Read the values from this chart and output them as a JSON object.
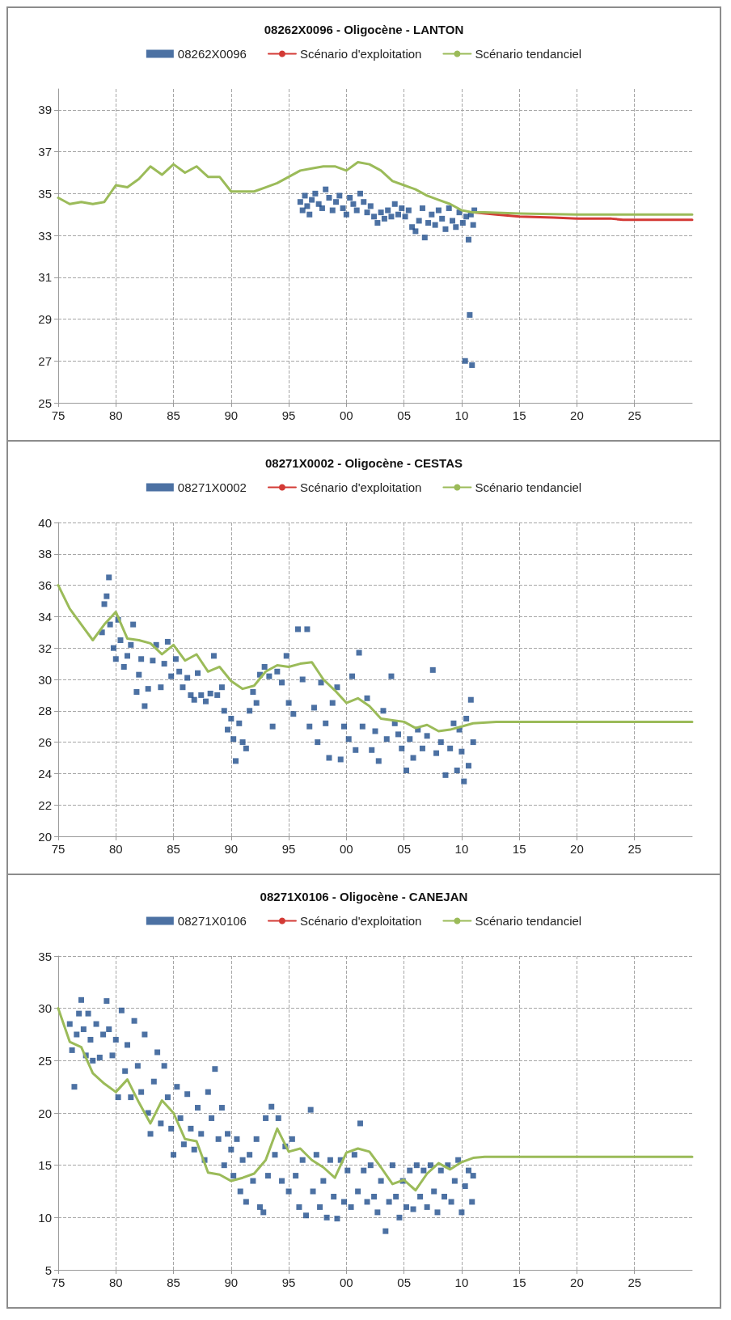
{
  "chart_data": [
    {
      "type": "scatter",
      "title": "08262X0096 - Oligocène - LANTON",
      "legend": "top",
      "grid": true,
      "xlim": [
        1975,
        2030
      ],
      "xticks": [
        {
          "value": 1975,
          "label": "75"
        },
        {
          "value": 1980,
          "label": "80"
        },
        {
          "value": 1985,
          "label": "85"
        },
        {
          "value": 1990,
          "label": "90"
        },
        {
          "value": 1995,
          "label": "95"
        },
        {
          "value": 2000,
          "label": "00"
        },
        {
          "value": 2005,
          "label": "05"
        },
        {
          "value": 2010,
          "label": "10"
        },
        {
          "value": 2015,
          "label": "15"
        },
        {
          "value": 2020,
          "label": "20"
        },
        {
          "value": 2025,
          "label": "25"
        }
      ],
      "ylim": [
        25,
        40
      ],
      "yticks": [
        25,
        27,
        29,
        31,
        33,
        35,
        37,
        39
      ],
      "series": [
        {
          "name": "08262X0096",
          "marker": "square",
          "color": "#1f4e8c",
          "x": [
            1996.0,
            1996.2,
            1996.4,
            1996.6,
            1996.8,
            1997.0,
            1997.3,
            1997.6,
            1997.9,
            1998.2,
            1998.5,
            1998.8,
            1999.1,
            1999.4,
            1999.7,
            2000.0,
            2000.3,
            2000.6,
            2000.9,
            2001.2,
            2001.5,
            2001.8,
            2002.1,
            2002.4,
            2002.7,
            2003.0,
            2003.3,
            2003.6,
            2003.9,
            2004.2,
            2004.5,
            2004.8,
            2005.1,
            2005.4,
            2005.7,
            2006.0,
            2006.3,
            2006.6,
            2006.8,
            2007.1,
            2007.4,
            2007.7,
            2008.0,
            2008.3,
            2008.6,
            2008.9,
            2009.2,
            2009.5,
            2009.8,
            2010.1,
            2010.3,
            2010.4,
            2010.6,
            2010.7,
            2010.8,
            2010.9,
            2011.0,
            2011.1
          ],
          "values": [
            34.6,
            34.2,
            34.9,
            34.4,
            34.0,
            34.7,
            35.0,
            34.5,
            34.3,
            35.2,
            34.8,
            34.2,
            34.6,
            34.9,
            34.3,
            34.0,
            34.8,
            34.5,
            34.2,
            35.0,
            34.6,
            34.1,
            34.4,
            33.9,
            33.6,
            34.1,
            33.8,
            34.2,
            33.9,
            34.5,
            34.0,
            34.3,
            33.9,
            34.2,
            33.4,
            33.2,
            33.7,
            34.3,
            32.9,
            33.6,
            34.0,
            33.5,
            34.2,
            33.8,
            33.3,
            34.3,
            33.7,
            33.4,
            34.1,
            33.6,
            27.0,
            33.9,
            32.8,
            29.2,
            34.0,
            26.8,
            33.5,
            34.2
          ]
        },
        {
          "name": "Scénario d'exploitation",
          "type": "line",
          "color": "#d33a35",
          "x": [
            2011,
            2013,
            2015,
            2018,
            2020,
            2023,
            2024,
            2030
          ],
          "values": [
            34.1,
            34.0,
            33.9,
            33.85,
            33.8,
            33.8,
            33.75,
            33.75
          ]
        },
        {
          "name": "Scénario tendanciel",
          "type": "line",
          "color": "#9bbb59",
          "x": [
            1975,
            1976,
            1977,
            1978,
            1979,
            1980,
            1981,
            1982,
            1983,
            1984,
            1985,
            1986,
            1987,
            1988,
            1989,
            1990,
            1991,
            1992,
            1993,
            1994,
            1995,
            1996,
            1997,
            1998,
            1999,
            2000,
            2001,
            2002,
            2003,
            2004,
            2005,
            2006,
            2007,
            2008,
            2009,
            2010,
            2011,
            2012,
            2015,
            2020,
            2025,
            2030
          ],
          "values": [
            34.8,
            34.5,
            34.6,
            34.5,
            34.6,
            35.4,
            35.3,
            35.7,
            36.3,
            35.9,
            36.4,
            36.0,
            36.3,
            35.8,
            35.8,
            35.1,
            35.1,
            35.1,
            35.3,
            35.5,
            35.8,
            36.1,
            36.2,
            36.3,
            36.3,
            36.1,
            36.5,
            36.4,
            36.1,
            35.6,
            35.4,
            35.2,
            34.9,
            34.7,
            34.5,
            34.2,
            34.1,
            34.1,
            34.05,
            34.0,
            34.0,
            34.0
          ]
        }
      ]
    },
    {
      "type": "scatter",
      "title": "08271X0002 - Oligocène - CESTAS",
      "legend": "top",
      "grid": true,
      "xlim": [
        1975,
        2030
      ],
      "xticks": [
        {
          "value": 1975,
          "label": "75"
        },
        {
          "value": 1980,
          "label": "80"
        },
        {
          "value": 1985,
          "label": "85"
        },
        {
          "value": 1990,
          "label": "90"
        },
        {
          "value": 1995,
          "label": "95"
        },
        {
          "value": 2000,
          "label": "00"
        },
        {
          "value": 2005,
          "label": "05"
        },
        {
          "value": 2010,
          "label": "10"
        },
        {
          "value": 2015,
          "label": "15"
        },
        {
          "value": 2020,
          "label": "20"
        },
        {
          "value": 2025,
          "label": "25"
        }
      ],
      "ylim": [
        20,
        40
      ],
      "yticks": [
        20,
        22,
        24,
        26,
        28,
        30,
        32,
        34,
        36,
        38,
        40
      ],
      "series": [
        {
          "name": "08271X0002",
          "marker": "square",
          "color": "#1f4e8c",
          "x": [
            1978.8,
            1979.0,
            1979.2,
            1979.4,
            1979.5,
            1979.8,
            1980.0,
            1980.2,
            1980.4,
            1980.7,
            1981.0,
            1981.3,
            1981.5,
            1981.8,
            1982.0,
            1982.2,
            1982.5,
            1982.8,
            1983.2,
            1983.5,
            1983.9,
            1984.2,
            1984.5,
            1984.8,
            1985.2,
            1985.5,
            1985.8,
            1986.2,
            1986.5,
            1986.8,
            1987.1,
            1987.4,
            1987.8,
            1988.2,
            1988.5,
            1988.8,
            1989.2,
            1989.4,
            1989.7,
            1990.0,
            1990.2,
            1990.4,
            1990.7,
            1991.0,
            1991.3,
            1991.6,
            1991.9,
            1992.2,
            1992.5,
            1992.9,
            1993.3,
            1993.6,
            1994.0,
            1994.4,
            1994.8,
            1995.0,
            1995.4,
            1995.8,
            1996.2,
            1996.6,
            1996.8,
            1997.2,
            1997.5,
            1997.8,
            1998.2,
            1998.5,
            1998.8,
            1999.2,
            1999.5,
            1999.8,
            2000.2,
            2000.5,
            2000.8,
            2001.1,
            2001.4,
            2001.8,
            2002.2,
            2002.5,
            2002.8,
            2003.2,
            2003.5,
            2003.9,
            2004.2,
            2004.5,
            2004.8,
            2005.2,
            2005.5,
            2005.8,
            2006.2,
            2006.6,
            2007.0,
            2007.5,
            2007.8,
            2008.2,
            2008.6,
            2009.0,
            2009.3,
            2009.6,
            2009.8,
            2010.0,
            2010.2,
            2010.4,
            2010.6,
            2010.8,
            2011.0
          ],
          "values": [
            33.0,
            34.8,
            35.3,
            36.5,
            33.5,
            32.0,
            31.3,
            33.8,
            32.5,
            30.8,
            31.5,
            32.2,
            33.5,
            29.2,
            30.3,
            31.3,
            28.3,
            29.4,
            31.2,
            32.2,
            29.5,
            31.0,
            32.4,
            30.2,
            31.3,
            30.5,
            29.5,
            30.1,
            29.0,
            28.7,
            30.4,
            29.0,
            28.6,
            29.1,
            31.5,
            29.0,
            29.5,
            28.0,
            26.8,
            27.5,
            26.2,
            24.8,
            27.2,
            26.0,
            25.6,
            28.0,
            29.2,
            28.5,
            30.3,
            30.8,
            30.2,
            27.0,
            30.5,
            29.8,
            31.5,
            28.5,
            27.8,
            33.2,
            30.0,
            33.2,
            27.0,
            28.2,
            26.0,
            29.8,
            27.2,
            25.0,
            28.5,
            29.5,
            24.9,
            27.0,
            26.2,
            30.2,
            25.5,
            31.7,
            27.0,
            28.8,
            25.5,
            26.7,
            24.8,
            28.0,
            26.2,
            30.2,
            27.2,
            26.5,
            25.6,
            24.2,
            26.2,
            25.0,
            26.8,
            25.6,
            26.4,
            30.6,
            25.3,
            26.0,
            23.9,
            25.6,
            27.2,
            24.2,
            26.8,
            25.4,
            23.5,
            27.5,
            24.5,
            28.7,
            26.0
          ]
        },
        {
          "name": "Scénario d'exploitation",
          "type": "line",
          "color": "#d33a35"
        },
        {
          "name": "Scénario tendanciel",
          "type": "line",
          "color": "#9bbb59",
          "x": [
            1975,
            1976,
            1977,
            1978,
            1979,
            1980,
            1981,
            1982,
            1983,
            1984,
            1985,
            1986,
            1987,
            1988,
            1989,
            1990,
            1991,
            1992,
            1993,
            1994,
            1995,
            1996,
            1997,
            1998,
            1999,
            2000,
            2001,
            2002,
            2003,
            2004,
            2005,
            2006,
            2007,
            2008,
            2009,
            2010,
            2011,
            2013,
            2020,
            2030
          ],
          "values": [
            36.0,
            34.5,
            33.5,
            32.5,
            33.5,
            34.3,
            32.6,
            32.5,
            32.3,
            31.6,
            32.2,
            31.2,
            31.6,
            30.5,
            30.8,
            29.9,
            29.4,
            29.6,
            30.5,
            30.9,
            30.8,
            31.0,
            31.1,
            30.0,
            29.3,
            28.5,
            28.8,
            28.3,
            27.5,
            27.4,
            27.3,
            26.9,
            27.1,
            26.7,
            26.8,
            27.0,
            27.2,
            27.3,
            27.3,
            27.3
          ]
        }
      ]
    },
    {
      "type": "scatter",
      "title": "08271X0106 - Oligocène - CANEJAN",
      "legend": "top",
      "grid": true,
      "xlim": [
        1975,
        2030
      ],
      "xticks": [
        {
          "value": 1975,
          "label": "75"
        },
        {
          "value": 1980,
          "label": "80"
        },
        {
          "value": 1985,
          "label": "85"
        },
        {
          "value": 1990,
          "label": "90"
        },
        {
          "value": 1995,
          "label": "95"
        },
        {
          "value": 2000,
          "label": "00"
        },
        {
          "value": 2005,
          "label": "05"
        },
        {
          "value": 2010,
          "label": "10"
        },
        {
          "value": 2015,
          "label": "15"
        },
        {
          "value": 2020,
          "label": "20"
        },
        {
          "value": 2025,
          "label": "25"
        }
      ],
      "ylim": [
        5,
        35
      ],
      "yticks": [
        5,
        10,
        15,
        20,
        25,
        30,
        35
      ],
      "series": [
        {
          "name": "08271X0106",
          "marker": "square",
          "color": "#1f4e8c",
          "x": [
            1976.0,
            1976.2,
            1976.4,
            1976.6,
            1976.8,
            1977.0,
            1977.2,
            1977.4,
            1977.6,
            1977.8,
            1978.0,
            1978.3,
            1978.6,
            1978.9,
            1979.2,
            1979.4,
            1979.7,
            1980.0,
            1980.2,
            1980.5,
            1980.8,
            1981.0,
            1981.3,
            1981.6,
            1981.9,
            1982.2,
            1982.5,
            1982.8,
            1983.0,
            1983.3,
            1983.6,
            1983.9,
            1984.2,
            1984.5,
            1984.8,
            1985.0,
            1985.3,
            1985.6,
            1985.9,
            1986.2,
            1986.5,
            1986.8,
            1987.1,
            1987.4,
            1987.7,
            1988.0,
            1988.3,
            1988.6,
            1988.9,
            1989.2,
            1989.4,
            1989.7,
            1990.0,
            1990.2,
            1990.5,
            1990.8,
            1991.0,
            1991.3,
            1991.6,
            1991.9,
            1992.2,
            1992.5,
            1992.8,
            1993.0,
            1993.2,
            1993.5,
            1993.8,
            1994.1,
            1994.4,
            1994.7,
            1995.0,
            1995.3,
            1995.6,
            1995.9,
            1996.2,
            1996.5,
            1996.9,
            1997.1,
            1997.4,
            1997.7,
            1998.0,
            1998.3,
            1998.6,
            1998.9,
            1999.2,
            1999.5,
            1999.8,
            2000.1,
            2000.4,
            2000.7,
            2001.0,
            2001.2,
            2001.5,
            2001.8,
            2002.1,
            2002.4,
            2002.7,
            2003.0,
            2003.4,
            2003.7,
            2004.0,
            2004.3,
            2004.6,
            2004.9,
            2005.2,
            2005.5,
            2005.8,
            2006.1,
            2006.4,
            2006.7,
            2007.0,
            2007.3,
            2007.6,
            2007.9,
            2008.2,
            2008.5,
            2008.8,
            2009.1,
            2009.4,
            2009.7,
            2010.0,
            2010.3,
            2010.6,
            2010.9,
            2011.0
          ],
          "values": [
            28.5,
            26.0,
            22.5,
            27.5,
            29.5,
            30.8,
            28.0,
            25.5,
            29.5,
            27.0,
            25.0,
            28.5,
            25.3,
            27.5,
            30.7,
            28.0,
            25.5,
            27.0,
            21.5,
            29.8,
            24.0,
            26.5,
            21.5,
            28.8,
            24.5,
            22.0,
            27.5,
            20.0,
            18.0,
            23.0,
            25.8,
            19.0,
            24.5,
            21.5,
            18.5,
            16.0,
            22.5,
            19.5,
            17.0,
            21.8,
            18.5,
            16.5,
            20.5,
            18.0,
            15.5,
            22.0,
            19.5,
            24.2,
            17.5,
            20.5,
            15.0,
            18.0,
            16.5,
            14.0,
            17.5,
            12.5,
            15.5,
            11.5,
            16.0,
            13.5,
            17.5,
            11.0,
            10.5,
            19.5,
            14.0,
            20.6,
            16.0,
            19.5,
            13.5,
            16.8,
            12.5,
            17.5,
            14.0,
            11.0,
            15.5,
            10.2,
            20.3,
            12.5,
            16.0,
            11.0,
            13.5,
            10.0,
            15.5,
            12.0,
            9.9,
            15.5,
            11.5,
            14.5,
            11.0,
            16.0,
            12.5,
            19.0,
            14.5,
            11.5,
            15.0,
            12.0,
            10.5,
            13.5,
            8.7,
            11.5,
            15.0,
            12.0,
            10.0,
            13.5,
            11.0,
            14.5,
            10.8,
            15.0,
            12.0,
            14.5,
            11.0,
            15.0,
            12.5,
            10.5,
            14.5,
            12.0,
            15.0,
            11.5,
            13.5,
            15.5,
            10.5,
            13.0,
            14.5,
            11.5,
            14.0
          ]
        },
        {
          "name": "Scénario d'exploitation",
          "type": "line",
          "color": "#d33a35"
        },
        {
          "name": "Scénario tendanciel",
          "type": "line",
          "color": "#9bbb59",
          "x": [
            1975,
            1976,
            1977,
            1978,
            1979,
            1980,
            1981,
            1982,
            1983,
            1984,
            1985,
            1986,
            1987,
            1988,
            1989,
            1990,
            1991,
            1992,
            1993,
            1994,
            1995,
            1996,
            1997,
            1998,
            1999,
            2000,
            2001,
            2002,
            2003,
            2004,
            2005,
            2006,
            2007,
            2008,
            2009,
            2010,
            2011,
            2012,
            2020,
            2030
          ],
          "values": [
            30.0,
            26.8,
            26.3,
            23.8,
            22.8,
            22.0,
            23.2,
            21.0,
            19.0,
            21.2,
            20.0,
            17.5,
            17.3,
            14.3,
            14.1,
            13.5,
            13.8,
            14.2,
            15.5,
            18.5,
            16.3,
            16.6,
            15.5,
            14.8,
            13.8,
            16.2,
            16.6,
            16.3,
            14.8,
            13.2,
            13.6,
            12.6,
            14.2,
            15.2,
            14.6,
            15.3,
            15.7,
            15.8,
            15.8,
            15.8
          ]
        }
      ]
    }
  ]
}
